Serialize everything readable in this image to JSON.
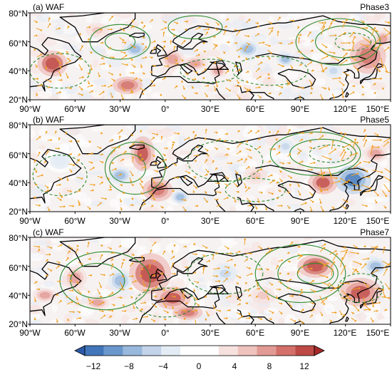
{
  "panels": [
    {
      "title": "(a) WAF",
      "phase": "Phase3"
    },
    {
      "title": "(b) WAF",
      "phase": "Phase5"
    },
    {
      "title": "(c) WAF",
      "phase": "Phase7"
    }
  ],
  "lat_ticks": [
    "80°N",
    "60°N",
    "40°N",
    "20°N"
  ],
  "lon_ticks": [
    "90°W",
    "60°W",
    "30°W",
    "0°",
    "30°E",
    "60°E",
    "90°E",
    "120°E",
    "150°E"
  ],
  "colorbar": {
    "tick_labels": [
      "−12",
      "−8",
      "−4",
      "0",
      "4",
      "8",
      "12"
    ],
    "tick_values": [
      -12,
      -8,
      -4,
      0,
      4,
      8,
      12
    ],
    "min": -14,
    "max": 14,
    "colors": [
      "#2c5aa8",
      "#4276ba",
      "#6a97cc",
      "#98b8dc",
      "#c3d4ea",
      "#e3ebf4",
      "#ffffff",
      "#ffffff",
      "#f6e1df",
      "#efc2bd",
      "#e29a94",
      "#d27069",
      "#bd4a45",
      "#a52a2a"
    ]
  },
  "colors": {
    "positive": "#c8484a",
    "negative": "#3f73b8",
    "contour": "#2e8b2e",
    "vector": "#f0a020",
    "coast": "#000000"
  }
}
